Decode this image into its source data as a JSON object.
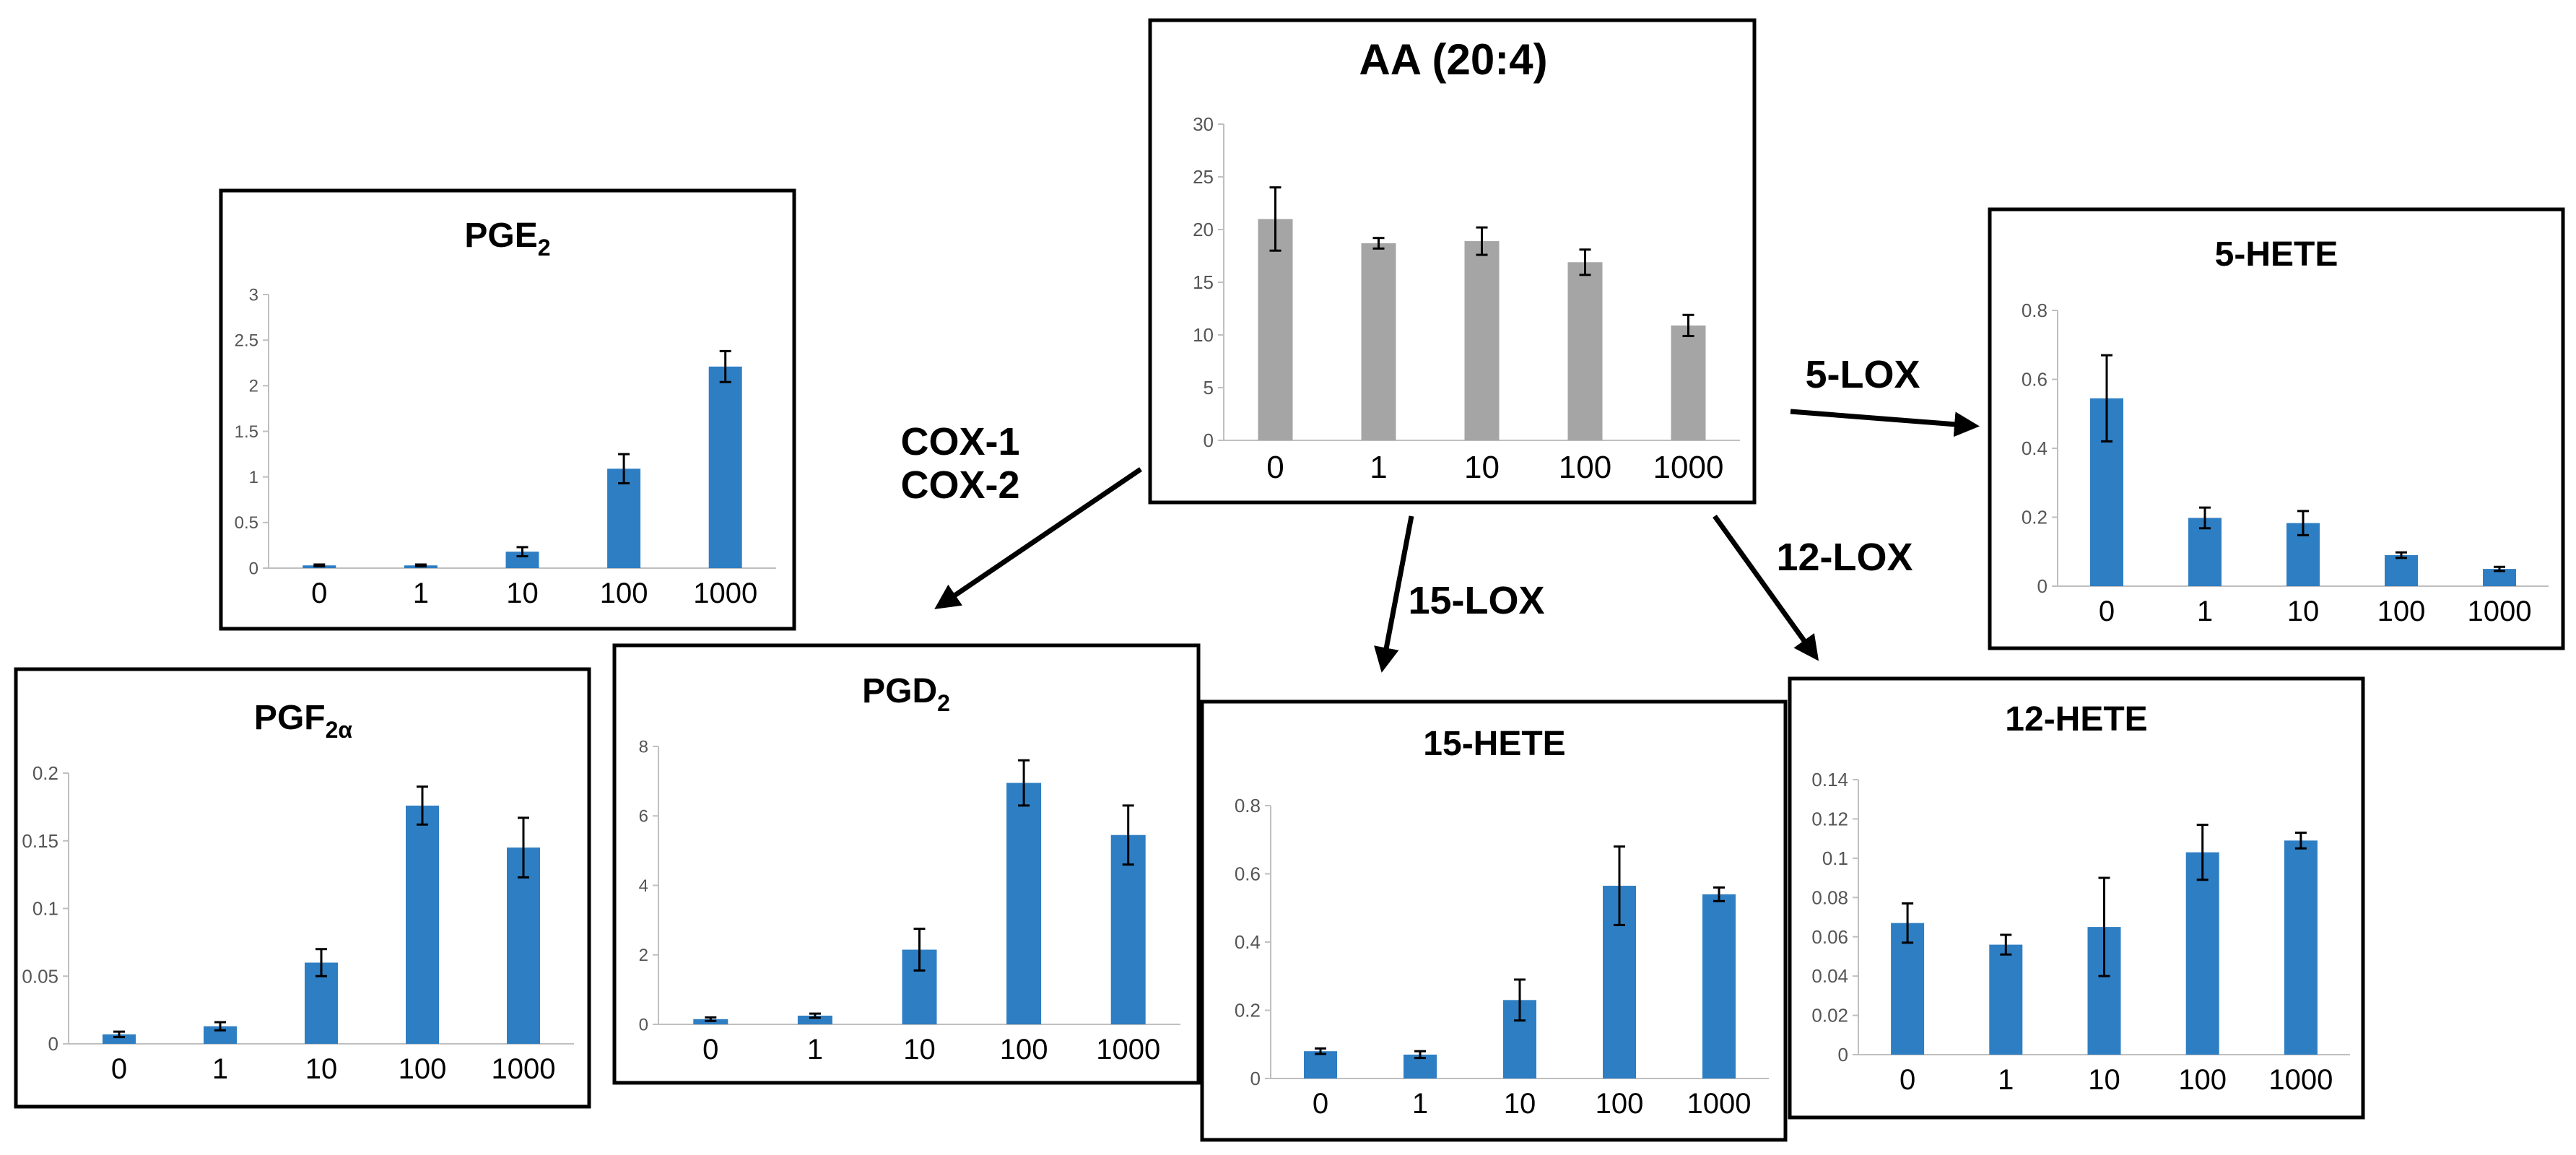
{
  "colors": {
    "blue": "#2E7EC3",
    "gray": "#A5A5A5"
  },
  "arrows": [
    {
      "id": "cox",
      "labels": [
        "COX-1",
        "COX-2"
      ]
    },
    {
      "id": "lox15",
      "labels": [
        "15-LOX"
      ]
    },
    {
      "id": "lox12",
      "labels": [
        "12-LOX"
      ]
    },
    {
      "id": "lox5",
      "labels": [
        "5-LOX"
      ]
    }
  ],
  "chart_data": [
    {
      "id": "aa",
      "type": "bar",
      "title": "AA (20:4)",
      "title_sub": "",
      "title_suffix": "",
      "color": "gray",
      "categories": [
        "0",
        "1",
        "10",
        "100",
        "1000"
      ],
      "values": [
        21,
        18.7,
        18.9,
        16.9,
        10.9
      ],
      "errors": [
        3,
        0.5,
        1.3,
        1.2,
        1.0
      ],
      "ylim": [
        0,
        30
      ],
      "yticks": [
        "0",
        "5",
        "10",
        "15",
        "20",
        "25",
        "30"
      ]
    },
    {
      "id": "pge2",
      "type": "bar",
      "title": "PGE",
      "title_sub": "2",
      "title_suffix": "",
      "color": "blue",
      "categories": [
        "0",
        "1",
        "10",
        "100",
        "1000"
      ],
      "values": [
        0.03,
        0.03,
        0.18,
        1.09,
        2.21
      ],
      "errors": [
        0.01,
        0.01,
        0.05,
        0.16,
        0.17
      ],
      "ylim": [
        0,
        3
      ],
      "yticks": [
        "0",
        "0.5",
        "1",
        "1.5",
        "2",
        "2.5",
        "3"
      ]
    },
    {
      "id": "pgf2a",
      "type": "bar",
      "title": "PGF",
      "title_sub": "2α",
      "title_suffix": "",
      "color": "blue",
      "categories": [
        "0",
        "1",
        "10",
        "100",
        "1000"
      ],
      "values": [
        0.007,
        0.013,
        0.06,
        0.176,
        0.145
      ],
      "errors": [
        0.002,
        0.003,
        0.01,
        0.014,
        0.022
      ],
      "ylim": [
        0,
        0.2
      ],
      "yticks": [
        "0",
        "0.05",
        "0.1",
        "0.15",
        "0.2"
      ]
    },
    {
      "id": "pgd2",
      "type": "bar",
      "title": "PGD",
      "title_sub": "2",
      "title_suffix": "",
      "color": "blue",
      "categories": [
        "0",
        "1",
        "10",
        "100",
        "1000"
      ],
      "values": [
        0.15,
        0.25,
        2.15,
        6.95,
        5.45
      ],
      "errors": [
        0.05,
        0.06,
        0.6,
        0.65,
        0.85
      ],
      "ylim": [
        0,
        8
      ],
      "yticks": [
        "0",
        "2",
        "4",
        "6",
        "8"
      ]
    },
    {
      "id": "hete15",
      "type": "bar",
      "title": "15-HETE",
      "title_sub": "",
      "title_suffix": "",
      "color": "blue",
      "categories": [
        "0",
        "1",
        "10",
        "100",
        "1000"
      ],
      "values": [
        0.08,
        0.07,
        0.23,
        0.565,
        0.54
      ],
      "errors": [
        0.008,
        0.01,
        0.06,
        0.115,
        0.02
      ],
      "ylim": [
        0,
        0.8
      ],
      "yticks": [
        "0",
        "0.2",
        "0.4",
        "0.6",
        "0.8"
      ]
    },
    {
      "id": "hete12",
      "type": "bar",
      "title": "12-HETE",
      "title_sub": "",
      "title_suffix": "",
      "color": "blue",
      "categories": [
        "0",
        "1",
        "10",
        "100",
        "1000"
      ],
      "values": [
        0.067,
        0.056,
        0.065,
        0.103,
        0.109
      ],
      "errors": [
        0.01,
        0.005,
        0.025,
        0.014,
        0.004
      ],
      "ylim": [
        0,
        0.14
      ],
      "yticks": [
        "0",
        "0.02",
        "0.04",
        "0.06",
        "0.08",
        "0.1",
        "0.12",
        "0.14"
      ]
    },
    {
      "id": "hete5",
      "type": "bar",
      "title": "5-HETE",
      "title_sub": "",
      "title_suffix": "",
      "color": "blue",
      "categories": [
        "0",
        "1",
        "10",
        "100",
        "1000"
      ],
      "values": [
        0.545,
        0.198,
        0.183,
        0.09,
        0.05
      ],
      "errors": [
        0.125,
        0.03,
        0.035,
        0.008,
        0.006
      ],
      "ylim": [
        0,
        0.8
      ],
      "yticks": [
        "0",
        "0.2",
        "0.4",
        "0.6",
        "0.8"
      ]
    }
  ]
}
